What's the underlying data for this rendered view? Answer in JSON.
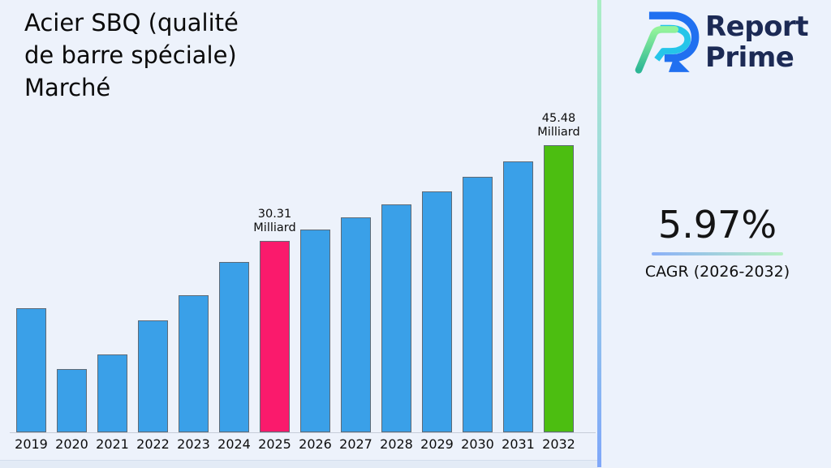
{
  "header": {
    "title": "Acier SBQ (qualité de barre spéciale) Marché",
    "title_lines": [
      "Acier SBQ (qualité",
      "de barre spéciale)",
      "Marché"
    ]
  },
  "logo": {
    "name": "Report Prime",
    "name_lines": "Report\nPrime"
  },
  "cagr": {
    "value": "5.97%",
    "label": "CAGR (2026-2032)"
  },
  "colors": {
    "bar_blue": "#3aa0e8",
    "bar_pink": "#fa1a6c",
    "bar_green": "#4cbe11",
    "brand_navy": "#1c2a55",
    "divider_gradient_top": "#aaeec4",
    "divider_gradient_bottom": "#7fa7f9",
    "underline_blue": "#8bb0f8",
    "underline_green": "#b6f0c3",
    "background": "#edf2fb"
  },
  "chart_data": {
    "type": "bar",
    "title": "Acier SBQ (qualité de barre spéciale) Marché",
    "unit": "Milliard",
    "categories": [
      "2019",
      "2020",
      "2021",
      "2022",
      "2023",
      "2024",
      "2025",
      "2026",
      "2027",
      "2028",
      "2029",
      "2030",
      "2031",
      "2032"
    ],
    "values": [
      19.7,
      10.0,
      12.3,
      17.7,
      21.7,
      27.0,
      30.31,
      32.11,
      34.03,
      36.06,
      38.21,
      40.49,
      42.91,
      45.48
    ],
    "bar_color": "#3aa0e8",
    "highlight_colors": {
      "2025": "#fa1a6c",
      "2032": "#4cbe11"
    },
    "annotations": [
      {
        "category": "2025",
        "lines": "30.31\nMilliard"
      },
      {
        "category": "2032",
        "lines": "45.48\nMilliard"
      }
    ],
    "xlabel": "",
    "ylabel": "",
    "ylim": [
      0,
      48
    ],
    "grid": false,
    "legend": false
  }
}
